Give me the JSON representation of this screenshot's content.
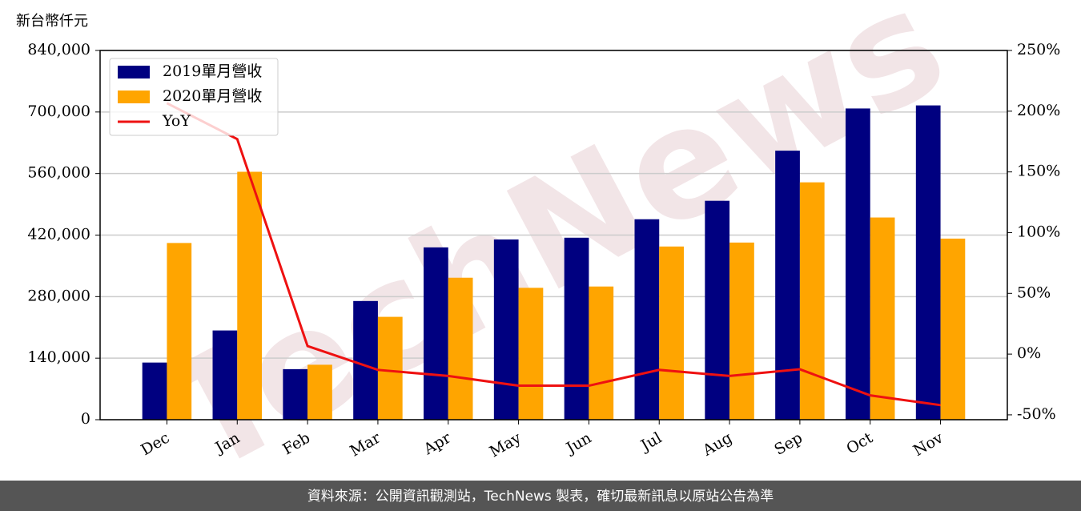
{
  "chart_data": {
    "type": "bar_line",
    "unit_label": "新台幣仟元",
    "watermark": "TechNews",
    "footer": "資料來源：公開資訊觀測站，TechNews 製表，確切最新訊息以原站公告為準",
    "categories": [
      "Dec",
      "Jan",
      "Feb",
      "Mar",
      "Apr",
      "May",
      "Jun",
      "Jul",
      "Aug",
      "Sep",
      "Oct",
      "Nov"
    ],
    "series": [
      {
        "name": "2019單月營收",
        "color": "#000080",
        "values": [
          130000,
          203000,
          115000,
          270000,
          392000,
          410000,
          414000,
          456000,
          498000,
          612000,
          708000,
          715000
        ]
      },
      {
        "name": "2020單月營收",
        "color": "#ffa500",
        "values": [
          402000,
          564000,
          125000,
          234000,
          323000,
          300000,
          303000,
          394000,
          403000,
          540000,
          460000,
          412000
        ]
      },
      {
        "name": "YoY",
        "color": "#ee1111",
        "axis": "y2",
        "type": "line",
        "values": [
          206.6,
          177,
          6.6,
          -13,
          -18,
          -26,
          -26,
          -13,
          -18,
          -12.5,
          -34,
          -42
        ]
      }
    ],
    "ylim": [
      0,
      840000
    ],
    "yticks": [
      0,
      {
        "value": 140000,
        "label": "140,000"
      },
      {
        "value": 280000,
        "label": "280,000"
      },
      {
        "value": 420000,
        "label": "420,000"
      },
      {
        "value": 560000,
        "label": "560,000"
      },
      {
        "value": 700000,
        "label": "700,000"
      },
      {
        "value": 840000,
        "label": "840,000"
      }
    ],
    "y2lim": [
      -54,
      250
    ],
    "y2ticks": [
      {
        "value": -50,
        "label": "-50%"
      },
      {
        "value": 0,
        "label": "0%"
      },
      {
        "value": 50,
        "label": "50%"
      },
      {
        "value": 100,
        "label": "100%"
      },
      {
        "value": 150,
        "label": "150%"
      },
      {
        "value": 200,
        "label": "200%"
      },
      {
        "value": 250,
        "label": "250%"
      }
    ],
    "grid": true,
    "legend": "upper-left"
  }
}
